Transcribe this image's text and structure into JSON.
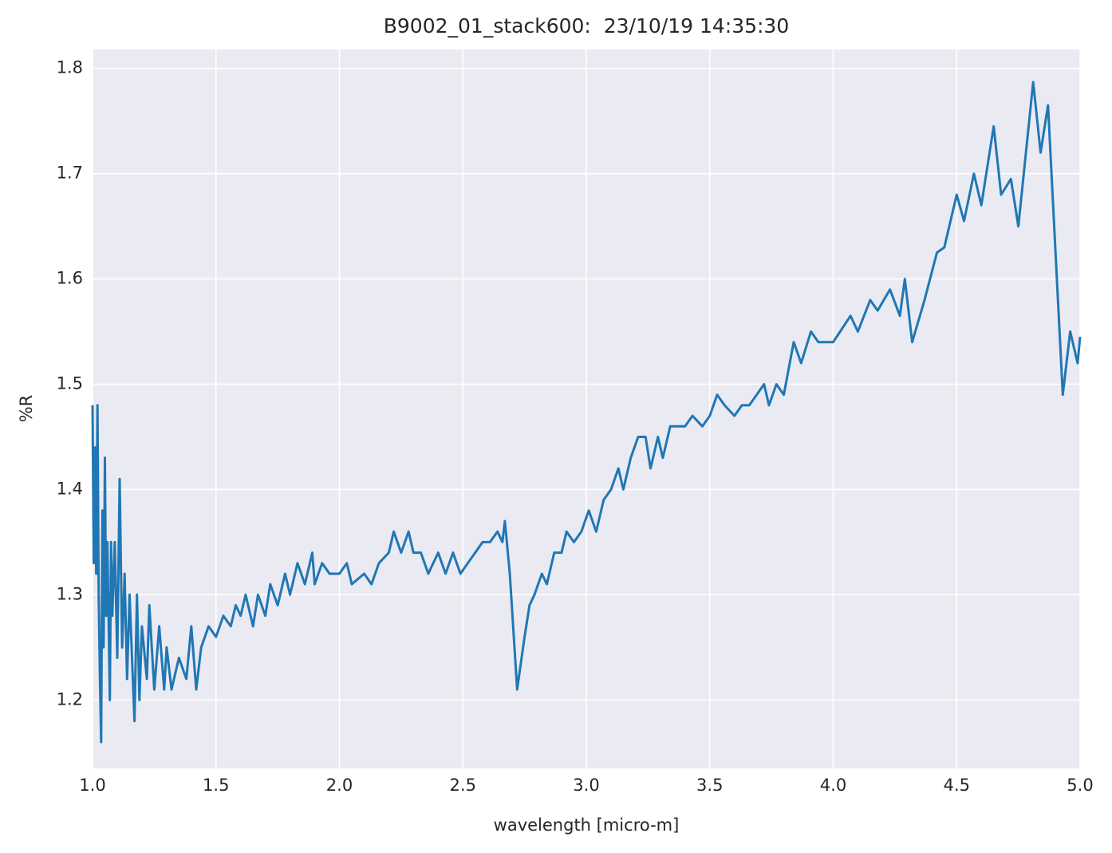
{
  "chart_data": {
    "type": "line",
    "title": "B9002_01_stack600:  23/10/19 14:35:30",
    "x_label": "wavelength [micro-m]",
    "y_label": "%R",
    "xlim": [
      1.0,
      5.0
    ],
    "ylim": [
      1.135,
      1.818
    ],
    "xticks": [
      {
        "value": 1.0,
        "label": "1.0"
      },
      1.5,
      {
        "value": 2.0,
        "label": "2.0"
      },
      2.5,
      {
        "value": 3.0,
        "label": "3.0"
      },
      3.5,
      {
        "value": 4.0,
        "label": "4.0"
      },
      4.5,
      {
        "value": 5.0,
        "label": "5.0"
      }
    ],
    "yticks": [
      1.2,
      1.3,
      1.4,
      1.5,
      1.6,
      1.7,
      1.8
    ],
    "grid": true,
    "background": "#eaeaf2",
    "x": [
      1.0,
      1.005,
      1.01,
      1.015,
      1.02,
      1.025,
      1.03,
      1.035,
      1.04,
      1.045,
      1.05,
      1.055,
      1.06,
      1.07,
      1.075,
      1.08,
      1.09,
      1.1,
      1.11,
      1.12,
      1.13,
      1.14,
      1.15,
      1.17,
      1.18,
      1.19,
      1.2,
      1.22,
      1.23,
      1.25,
      1.27,
      1.29,
      1.3,
      1.32,
      1.35,
      1.38,
      1.4,
      1.42,
      1.44,
      1.47,
      1.5,
      1.53,
      1.56,
      1.58,
      1.6,
      1.62,
      1.65,
      1.67,
      1.7,
      1.72,
      1.75,
      1.78,
      1.8,
      1.83,
      1.86,
      1.89,
      1.9,
      1.93,
      1.96,
      2.0,
      2.03,
      2.05,
      2.1,
      2.13,
      2.16,
      2.2,
      2.22,
      2.25,
      2.28,
      2.3,
      2.33,
      2.36,
      2.4,
      2.43,
      2.46,
      2.49,
      2.52,
      2.55,
      2.58,
      2.61,
      2.64,
      2.66,
      2.67,
      2.69,
      2.72,
      2.75,
      2.77,
      2.79,
      2.82,
      2.84,
      2.87,
      2.9,
      2.92,
      2.95,
      2.98,
      3.01,
      3.04,
      3.07,
      3.1,
      3.13,
      3.15,
      3.18,
      3.21,
      3.24,
      3.26,
      3.29,
      3.31,
      3.34,
      3.37,
      3.4,
      3.43,
      3.47,
      3.5,
      3.53,
      3.56,
      3.6,
      3.63,
      3.66,
      3.69,
      3.72,
      3.74,
      3.77,
      3.8,
      3.84,
      3.87,
      3.91,
      3.94,
      3.97,
      4.0,
      4.07,
      4.1,
      4.15,
      4.18,
      4.23,
      4.27,
      4.29,
      4.32,
      4.37,
      4.42,
      4.45,
      4.5,
      4.53,
      4.57,
      4.6,
      4.65,
      4.68,
      4.72,
      4.75,
      4.81,
      4.84,
      4.87,
      4.93,
      4.96,
      4.99,
      5.0
    ],
    "series": [
      {
        "color": "#2077b4",
        "values": [
          1.48,
          1.33,
          1.44,
          1.32,
          1.48,
          1.3,
          1.22,
          1.16,
          1.38,
          1.25,
          1.43,
          1.28,
          1.35,
          1.2,
          1.35,
          1.28,
          1.35,
          1.24,
          1.41,
          1.25,
          1.32,
          1.22,
          1.3,
          1.18,
          1.3,
          1.2,
          1.27,
          1.22,
          1.29,
          1.21,
          1.27,
          1.21,
          1.25,
          1.21,
          1.24,
          1.22,
          1.27,
          1.21,
          1.25,
          1.27,
          1.26,
          1.28,
          1.27,
          1.29,
          1.28,
          1.3,
          1.27,
          1.3,
          1.28,
          1.31,
          1.29,
          1.32,
          1.3,
          1.33,
          1.31,
          1.34,
          1.31,
          1.33,
          1.32,
          1.32,
          1.33,
          1.31,
          1.32,
          1.31,
          1.33,
          1.34,
          1.36,
          1.34,
          1.36,
          1.34,
          1.34,
          1.32,
          1.34,
          1.32,
          1.34,
          1.32,
          1.33,
          1.34,
          1.35,
          1.35,
          1.36,
          1.35,
          1.37,
          1.32,
          1.21,
          1.26,
          1.29,
          1.3,
          1.32,
          1.31,
          1.34,
          1.34,
          1.36,
          1.35,
          1.36,
          1.38,
          1.36,
          1.39,
          1.4,
          1.42,
          1.4,
          1.43,
          1.45,
          1.45,
          1.42,
          1.45,
          1.43,
          1.46,
          1.46,
          1.46,
          1.47,
          1.46,
          1.47,
          1.49,
          1.48,
          1.47,
          1.48,
          1.48,
          1.49,
          1.5,
          1.48,
          1.5,
          1.49,
          1.54,
          1.52,
          1.55,
          1.54,
          1.54,
          1.54,
          1.565,
          1.55,
          1.58,
          1.57,
          1.59,
          1.565,
          1.6,
          1.54,
          1.58,
          1.625,
          1.63,
          1.68,
          1.655,
          1.7,
          1.67,
          1.745,
          1.68,
          1.695,
          1.65,
          1.787,
          1.72,
          1.765,
          1.49,
          1.55,
          1.52,
          1.545
        ]
      }
    ]
  }
}
